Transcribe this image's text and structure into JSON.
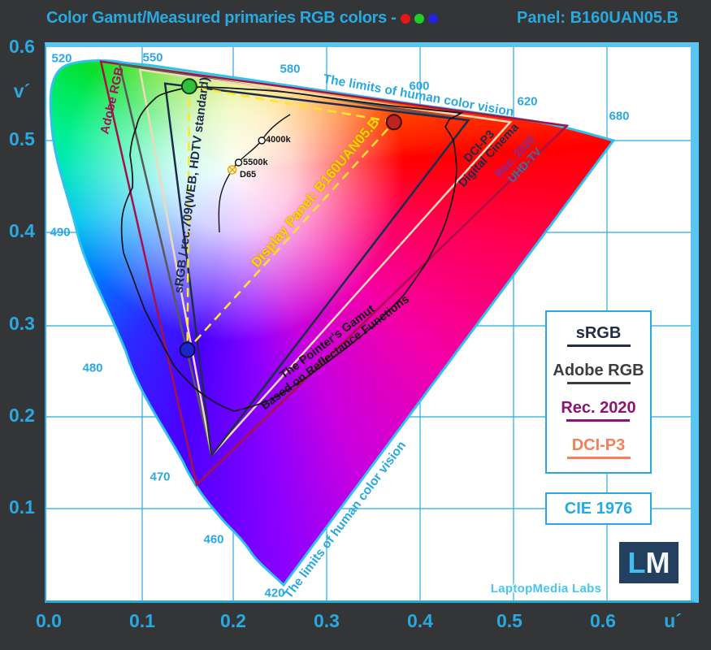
{
  "header": {
    "title": "Color Gamut/Measured primaries RGB colors -",
    "panel_label": "Panel: B160UAN05.B",
    "dot_colors": [
      "#e81616",
      "#1fcf26",
      "#2323e0"
    ],
    "accent_color": "#2aa8e0"
  },
  "axes": {
    "y_label": "v´",
    "x_label": "u´",
    "y_ticks": [
      "0.6",
      "0.5",
      "0.4",
      "0.3",
      "0.2",
      "0.1"
    ],
    "x_ticks": [
      "0.0",
      "0.1",
      "0.2",
      "0.3",
      "0.4",
      "0.5",
      "0.6"
    ]
  },
  "wavelengths": [
    "520",
    "550",
    "580",
    "600",
    "620",
    "680",
    "490",
    "480",
    "470",
    "460",
    "420"
  ],
  "annotations": {
    "limits_top": "The limits of human color vision",
    "limits_bottom": "The limits of human color vision",
    "adobe_rgb": "Adobe RGB",
    "srgb": "sRGB / rec.709(WEB, HDTV standard)",
    "display_panel": "Display Panel: B160UAN05.B",
    "pointers_line1": "The Pointer's Gamut",
    "pointers_line2": "Based on Reflectance Functions",
    "dcip3_line1": "DCI-P3",
    "dcip3_line2": "Digital Cinema",
    "rec2020_line1": "Rec. 2020",
    "rec2020_line2": "UHD-TV",
    "wp_4000k": "4000k",
    "wp_5500k": "5500k",
    "wp_d65": "D65"
  },
  "legend": {
    "items": [
      {
        "label": "sRGB",
        "color": "#232e44"
      },
      {
        "label": "Adobe RGB",
        "color": "#3d3d3d"
      },
      {
        "label": "Rec. 2020",
        "color": "#8e1472"
      },
      {
        "label": "DCI-P3",
        "color": "#f58158"
      }
    ]
  },
  "footer": {
    "cie_label": "CIE 1976",
    "brand": "LaptopMedia Labs",
    "logo_l": "L",
    "logo_m": "M"
  },
  "chart_data": {
    "type": "scatter",
    "title": "Color Gamut/Measured primaries RGB colors",
    "subtitle": "Panel: B160UAN05.B",
    "diagram": "CIE 1976 u'v' chromaticity diagram",
    "xlabel": "u´",
    "ylabel": "v´",
    "xlim": [
      0,
      0.69
    ],
    "ylim": [
      0,
      0.6
    ],
    "grid": true,
    "legend_position": "right",
    "pixel_mapping": {
      "origin_x": 3,
      "origin_y": 681,
      "scale_x": 1145,
      "scale_y": 1130
    },
    "gamuts": [
      {
        "name": "rec-2020",
        "label": "Rec. 2020 UHD-TV",
        "color": "#a81148",
        "width": 2.5,
        "vertices": [
          [
            0.557,
            0.517
          ],
          [
            0.056,
            0.587
          ],
          [
            0.159,
            0.126
          ]
        ]
      },
      {
        "name": "adobe-rgb",
        "label": "Adobe RGB",
        "color": "#595959",
        "width": 2.5,
        "vertices": [
          [
            0.451,
            0.523
          ],
          [
            0.076,
            0.584
          ],
          [
            0.175,
            0.158
          ]
        ]
      },
      {
        "name": "dci-p3",
        "label": "DCI-P3 Digital Cinema",
        "color": "#f2d9b5",
        "width": 2.5,
        "vertices": [
          [
            0.496,
            0.521
          ],
          [
            0.098,
            0.578
          ],
          [
            0.175,
            0.158
          ]
        ]
      },
      {
        "name": "srgb",
        "label": "sRGB / rec.709 (WEB, HDTV standard)",
        "color": "#1d2c4d",
        "width": 2.5,
        "vertices": [
          [
            0.451,
            0.523
          ],
          [
            0.125,
            0.563
          ],
          [
            0.175,
            0.158
          ]
        ]
      },
      {
        "name": "display-panel",
        "label": "Display Panel: B160UAN05.B",
        "color": "#ffe62a",
        "width": 2.5,
        "dashed": true,
        "vertices": [
          [
            0.371,
            0.521
          ],
          [
            0.151,
            0.56
          ],
          [
            0.149,
            0.273
          ]
        ]
      }
    ],
    "measured_primaries": [
      {
        "name": "red",
        "u": 0.371,
        "v": 0.521,
        "color": "#c0231f",
        "stroke": "#3c0b0b"
      },
      {
        "name": "green",
        "u": 0.151,
        "v": 0.56,
        "color": "#2fbf3a",
        "stroke": "#0f3f12"
      },
      {
        "name": "blue",
        "u": 0.149,
        "v": 0.273,
        "color": "#1d24c9",
        "stroke": "#0a1048"
      }
    ],
    "white_points": [
      {
        "name": "4000k",
        "u": 0.229,
        "v": 0.501,
        "fill": "#ffffff",
        "stroke": "#111111",
        "r": 4
      },
      {
        "name": "5500k",
        "u": 0.204,
        "v": 0.477,
        "fill": "#ffffff",
        "stroke": "#111111",
        "r": 4
      },
      {
        "name": "D65",
        "u": 0.197,
        "v": 0.469,
        "fill": "#fff6d8",
        "stroke": "#f0a000",
        "r": 5
      }
    ]
  }
}
